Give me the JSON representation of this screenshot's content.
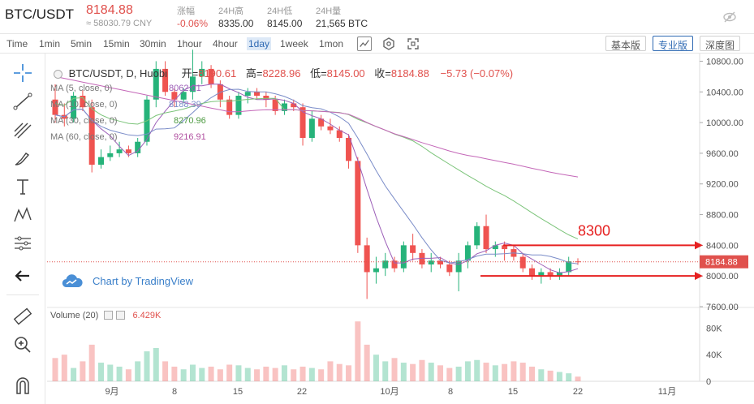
{
  "header": {
    "pair": "BTC/USDT",
    "last_price": "8184.88",
    "cny_price": "≈ 58030.79 CNY",
    "stats": [
      {
        "label": "涨幅",
        "value": "-0.06%",
        "color": "#e0514d"
      },
      {
        "label": "24H高",
        "value": "8335.00",
        "color": "#333333"
      },
      {
        "label": "24H低",
        "value": "8145.00",
        "color": "#333333"
      },
      {
        "label": "24H量",
        "value": "21,565 BTC",
        "color": "#333333"
      }
    ]
  },
  "toolbar": {
    "timeframes": [
      "Time",
      "1min",
      "5min",
      "15min",
      "30min",
      "1hour",
      "4hour",
      "1day",
      "1week",
      "1mon"
    ],
    "active_timeframe": "1day",
    "views": [
      "基本版",
      "专业版",
      "深度图"
    ],
    "active_view": "专业版"
  },
  "legend": {
    "title": "BTC/USDT, D, Huobi",
    "open_label": "开=",
    "open": "8190.61",
    "high_label": "高=",
    "high": "8228.96",
    "low_label": "低=",
    "low": "8145.00",
    "close_label": "收=",
    "close": "8184.88",
    "change": "−5.73 (−0.07%)"
  },
  "mas": [
    {
      "label": "MA (5, close, 0)",
      "value": "8062.01",
      "color": "#9c5fb8"
    },
    {
      "label": "MA (10, close, 0)",
      "value": "8188.39",
      "color": "#7a8cc8"
    },
    {
      "label": "MA (30, close, 0)",
      "value": "8270.96",
      "color": "#4c9a40"
    },
    {
      "label": "MA (60, close, 0)",
      "value": "9216.91",
      "color": "#b04fa0"
    }
  ],
  "branding": "Chart by TradingView",
  "annotation": "8300",
  "volume": {
    "label": "Volume (20)",
    "value": "6.429K",
    "ticks": [
      "80K",
      "40K",
      "0"
    ]
  },
  "price_axis": {
    "ticks": [
      "10800.00",
      "10400.00",
      "10000.00",
      "9600.00",
      "9200.00",
      "8800.00",
      "8400.00",
      "8000.00",
      "7600.00"
    ],
    "current": "8184.88"
  },
  "time_axis": [
    "9月",
    "8",
    "15",
    "22",
    "10月",
    "8",
    "15",
    "22",
    "11月"
  ],
  "chart_data": {
    "type": "candlestick",
    "title": "BTC/USDT, D, Huobi",
    "ylim": [
      7600,
      10900
    ],
    "x_labels": [
      "9月",
      "8",
      "15",
      "22",
      "10月",
      "8",
      "15",
      "22",
      "11月"
    ],
    "candles": [
      [
        10300,
        10500,
        10000,
        10100
      ],
      [
        10100,
        10250,
        9950,
        10050
      ],
      [
        10050,
        10400,
        10000,
        10350
      ],
      [
        10350,
        10420,
        10150,
        10200
      ],
      [
        10200,
        10300,
        9350,
        9450
      ],
      [
        9450,
        9650,
        9400,
        9550
      ],
      [
        9550,
        9700,
        9500,
        9600
      ],
      [
        9600,
        9750,
        9550,
        9650
      ],
      [
        9650,
        9700,
        9550,
        9600
      ],
      [
        9600,
        9800,
        9550,
        9750
      ],
      [
        9750,
        10350,
        9700,
        10300
      ],
      [
        10300,
        10800,
        10200,
        10700
      ],
      [
        10700,
        10800,
        10350,
        10400
      ],
      [
        10400,
        10450,
        10200,
        10300
      ],
      [
        10300,
        10450,
        10250,
        10400
      ],
      [
        10400,
        10950,
        10300,
        10600
      ],
      [
        10600,
        10800,
        10500,
        10700
      ],
      [
        10700,
        10750,
        10450,
        10500
      ],
      [
        10500,
        10550,
        10200,
        10300
      ],
      [
        10300,
        10350,
        10050,
        10100
      ],
      [
        10100,
        10400,
        10050,
        10350
      ],
      [
        10350,
        10450,
        10250,
        10400
      ],
      [
        10400,
        10450,
        10300,
        10350
      ],
      [
        10350,
        10400,
        10200,
        10300
      ],
      [
        10300,
        10350,
        10100,
        10150
      ],
      [
        10150,
        10300,
        10100,
        10250
      ],
      [
        10250,
        10300,
        10150,
        10200
      ],
      [
        10200,
        10250,
        9700,
        9800
      ],
      [
        9800,
        10150,
        9750,
        10050
      ],
      [
        10050,
        10100,
        9900,
        9950
      ],
      [
        9950,
        10050,
        9850,
        9900
      ],
      [
        9900,
        9950,
        9750,
        9800
      ],
      [
        9800,
        9850,
        9400,
        9500
      ],
      [
        9500,
        9550,
        8300,
        8400
      ],
      [
        8400,
        8500,
        7700,
        8050
      ],
      [
        8050,
        8250,
        7900,
        8100
      ],
      [
        8100,
        8300,
        8000,
        8200
      ],
      [
        8200,
        8250,
        8050,
        8100
      ],
      [
        8100,
        8450,
        8050,
        8400
      ],
      [
        8400,
        8550,
        8200,
        8300
      ],
      [
        8300,
        8350,
        8100,
        8150
      ],
      [
        8150,
        8300,
        8050,
        8200
      ],
      [
        8200,
        8250,
        8100,
        8150
      ],
      [
        8150,
        8200,
        8000,
        8050
      ],
      [
        8050,
        8300,
        7800,
        8200
      ],
      [
        8200,
        8450,
        8100,
        8400
      ],
      [
        8400,
        8700,
        8350,
        8650
      ],
      [
        8650,
        8800,
        8300,
        8350
      ],
      [
        8350,
        8450,
        8250,
        8400
      ],
      [
        8400,
        8450,
        8200,
        8350
      ],
      [
        8350,
        8400,
        8200,
        8250
      ],
      [
        8250,
        8300,
        8050,
        8100
      ],
      [
        8100,
        8150,
        7950,
        8000
      ],
      [
        8000,
        8100,
        7900,
        8050
      ],
      [
        8050,
        8100,
        7950,
        8000
      ],
      [
        8000,
        8100,
        7950,
        8050
      ],
      [
        8050,
        8250,
        8000,
        8190
      ],
      [
        8190,
        8230,
        8145,
        8185
      ]
    ],
    "volumes": [
      35,
      40,
      20,
      30,
      55,
      28,
      25,
      22,
      18,
      30,
      45,
      50,
      30,
      22,
      18,
      25,
      20,
      22,
      18,
      25,
      24,
      20,
      18,
      22,
      20,
      24,
      18,
      22,
      20,
      18,
      30,
      26,
      24,
      90,
      55,
      40,
      30,
      35,
      28,
      26,
      32,
      28,
      24,
      20,
      22,
      30,
      32,
      28,
      24,
      26,
      30,
      28,
      22,
      18,
      16,
      14,
      12,
      7
    ],
    "annotation_lines": [
      8400,
      8000
    ]
  }
}
